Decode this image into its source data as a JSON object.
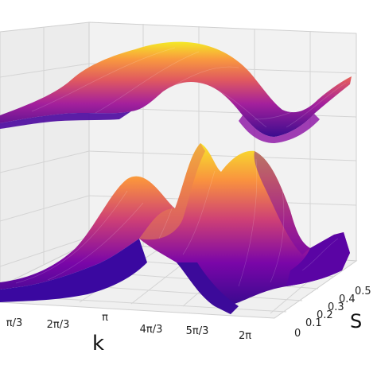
{
  "chart_data": {
    "type": "surface3d",
    "colormap": "plasma",
    "colormap_stops": [
      "#0d0887",
      "#6a00a8",
      "#b12a90",
      "#e16462",
      "#fca636",
      "#f0f921"
    ],
    "grid": true,
    "xlabel": "k",
    "ylabel": "S",
    "zlabel": "",
    "x_ticks": [
      "π/3",
      "2π/3",
      "π",
      "4π/3",
      "5π/3",
      "2π"
    ],
    "y_ticks": [
      "0",
      "0.1",
      "0.2",
      "0.3",
      "0.4",
      "0.5"
    ],
    "xlim": [
      0,
      6.2832
    ],
    "ylim": [
      0,
      0.5
    ],
    "series": [
      {
        "surface": "upper-band",
        "k_over_pi": [
          0,
          0.25,
          0.5,
          0.75,
          1.0,
          1.25,
          1.5,
          1.75,
          2.0
        ],
        "value_at_S0": [
          0.1,
          0.22,
          0.48,
          0.8,
          0.95,
          0.75,
          0.45,
          0.22,
          0.1
        ],
        "value_at_S05": [
          0.2,
          0.32,
          0.55,
          0.85,
          1.0,
          0.82,
          0.52,
          0.3,
          0.2
        ]
      },
      {
        "surface": "lower-band",
        "k_over_pi": [
          0,
          0.25,
          0.5,
          0.75,
          1.0,
          1.25,
          1.5,
          1.75,
          2.0
        ],
        "value_at_S0": [
          0.05,
          0.1,
          0.55,
          0.88,
          0.6,
          0.88,
          0.55,
          0.1,
          0.05
        ],
        "value_at_S05": [
          0.1,
          0.15,
          0.65,
          0.95,
          0.72,
          0.95,
          0.65,
          0.2,
          0.1
        ]
      }
    ]
  }
}
